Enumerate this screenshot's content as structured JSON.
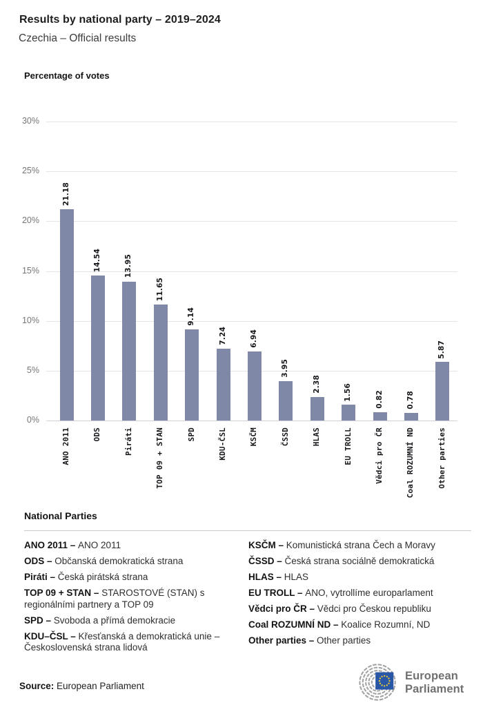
{
  "header": {
    "title": "Results by national party – 2019–2024",
    "subtitle": "Czechia – Official results"
  },
  "chart_data": {
    "type": "bar",
    "title": "Percentage of votes",
    "categories": [
      "ANO 2011",
      "ODS",
      "Piráti",
      "TOP 09 + STAN",
      "SPD",
      "KDU-ČSL",
      "KSČM",
      "ČSSD",
      "HLAS",
      "EU TROLL",
      "Vědci pro ČR",
      "Coal ROZUMNÍ ND",
      "Other parties"
    ],
    "values": [
      21.18,
      14.54,
      13.95,
      11.65,
      9.14,
      7.24,
      6.94,
      3.95,
      2.38,
      1.56,
      0.82,
      0.78,
      5.87
    ],
    "value_labels": [
      "21.18",
      "14.54",
      "13.95",
      "11.65",
      "9.14",
      "7.24",
      "6.94",
      "3.95",
      "2.38",
      "1.56",
      "0.82",
      "0.78",
      "5.87"
    ],
    "yticks": [
      "30%",
      "25%",
      "20%",
      "15%",
      "10%",
      "5%",
      "0%"
    ],
    "ylim": [
      0,
      30
    ],
    "grid": true,
    "legend_position": "none",
    "bar_color": "#7f88a6"
  },
  "legend": {
    "heading": "National Parties",
    "left_column": [
      {
        "code": "ANO 2011 –",
        "desc": "ANO 2011"
      },
      {
        "code": "ODS –",
        "desc": "Občanská demokratická strana"
      },
      {
        "code": "Piráti –",
        "desc": "Česká pirátská strana"
      },
      {
        "code": "TOP 09 + STAN –",
        "desc": "STAROSTOVÉ (STAN) s regionálními partnery a TOP 09"
      },
      {
        "code": "SPD –",
        "desc": "Svoboda a přímá demokracie"
      },
      {
        "code": "KDU–ČSL –",
        "desc": "Křesťanská a demokratická unie – Československá strana lidová"
      }
    ],
    "right_column": [
      {
        "code": "KSČM –",
        "desc": "Komunistická strana Čech a Moravy"
      },
      {
        "code": "ČSSD –",
        "desc": "Česká strana sociálně demokratická"
      },
      {
        "code": "HLAS –",
        "desc": "HLAS"
      },
      {
        "code": "EU TROLL –",
        "desc": "ANO, vytrollíme europarlament"
      },
      {
        "code": "Vědci pro ČR –",
        "desc": "Vědci pro Českou republiku"
      },
      {
        "code": "Coal ROZUMNÍ ND –",
        "desc": "Koalice Rozumní, ND"
      },
      {
        "code": "Other parties –",
        "desc": "Other parties"
      }
    ]
  },
  "footer": {
    "source_label": "Source:",
    "source_value": "European Parliament",
    "logo_line1": "European",
    "logo_line2": "Parliament"
  }
}
